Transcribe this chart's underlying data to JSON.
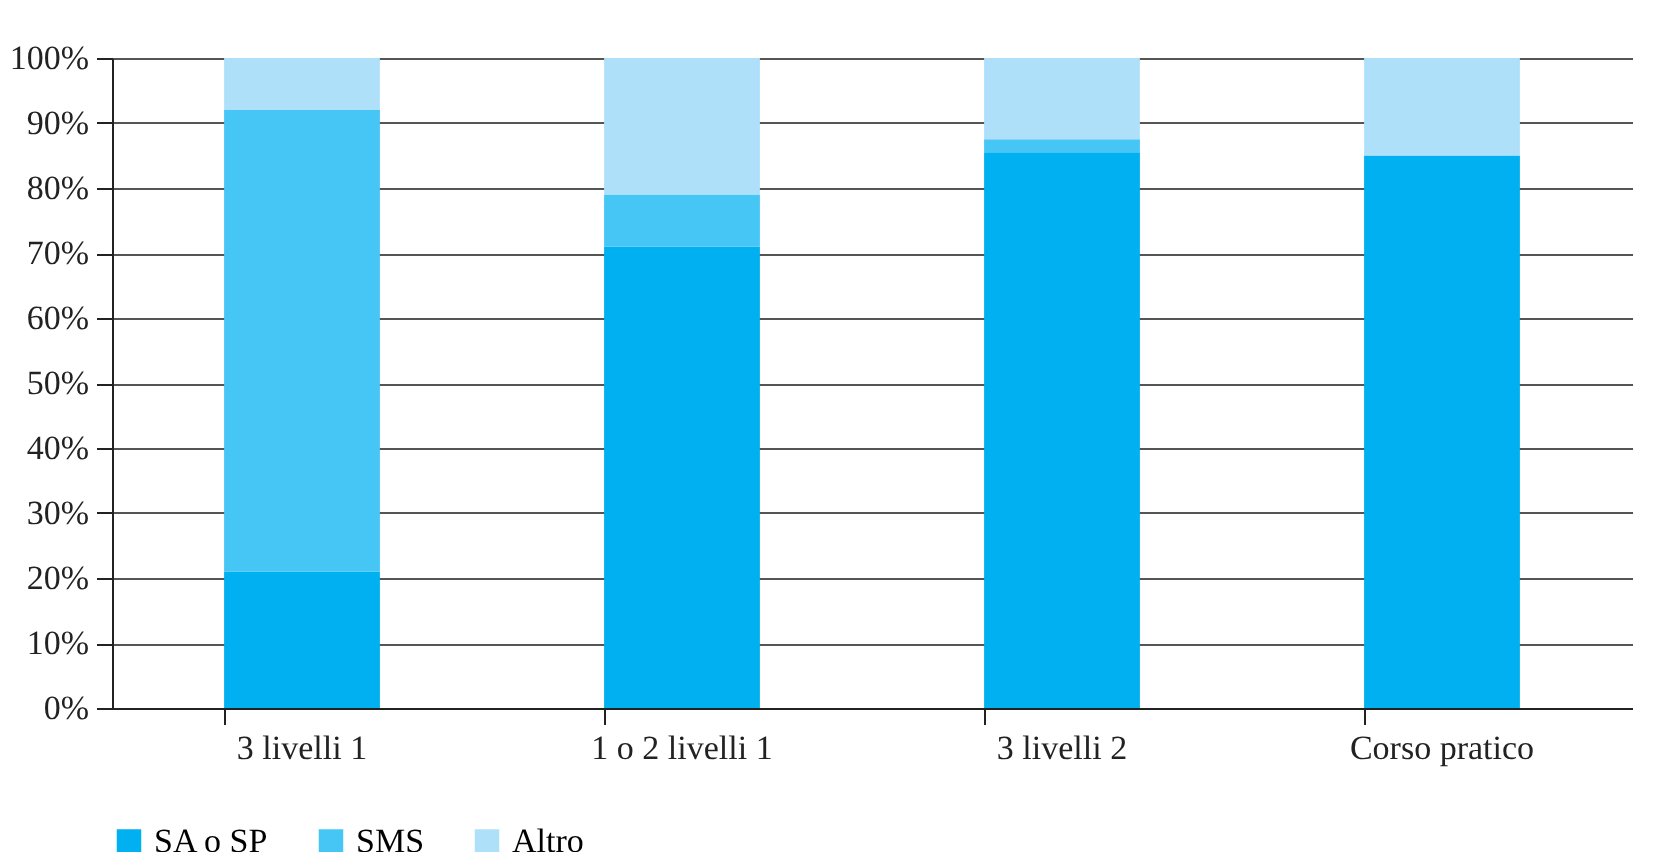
{
  "chart_data": {
    "type": "bar",
    "stacked": true,
    "categories": [
      "3 livelli 1",
      "1 o 2 livelli 1",
      "3 livelli 2",
      "Corso pratico"
    ],
    "series": [
      {
        "name": "SA o SP",
        "color": "#00b0f0",
        "values": [
          21,
          71,
          85.5,
          85
        ]
      },
      {
        "name": "SMS",
        "color": "#45c6f4",
        "values": [
          71,
          8,
          2,
          0
        ]
      },
      {
        "name": "Altro",
        "color": "#aee0f9",
        "values": [
          8,
          21,
          12.5,
          15
        ]
      }
    ],
    "ylim": [
      0,
      100
    ],
    "yticks": [
      {
        "value": 0,
        "label": "0%"
      },
      {
        "value": 10,
        "label": "10%"
      },
      {
        "value": 20,
        "label": "20%"
      },
      {
        "value": 30,
        "label": "30%"
      },
      {
        "value": 40,
        "label": "40%"
      },
      {
        "value": 50,
        "label": "50%"
      },
      {
        "value": 60,
        "label": "60%"
      },
      {
        "value": 70,
        "label": "70%"
      },
      {
        "value": 80,
        "label": "80%"
      },
      {
        "value": 90,
        "label": "90%"
      },
      {
        "value": 100,
        "label": "100%"
      }
    ],
    "grid": "y",
    "legend": "bottom"
  }
}
